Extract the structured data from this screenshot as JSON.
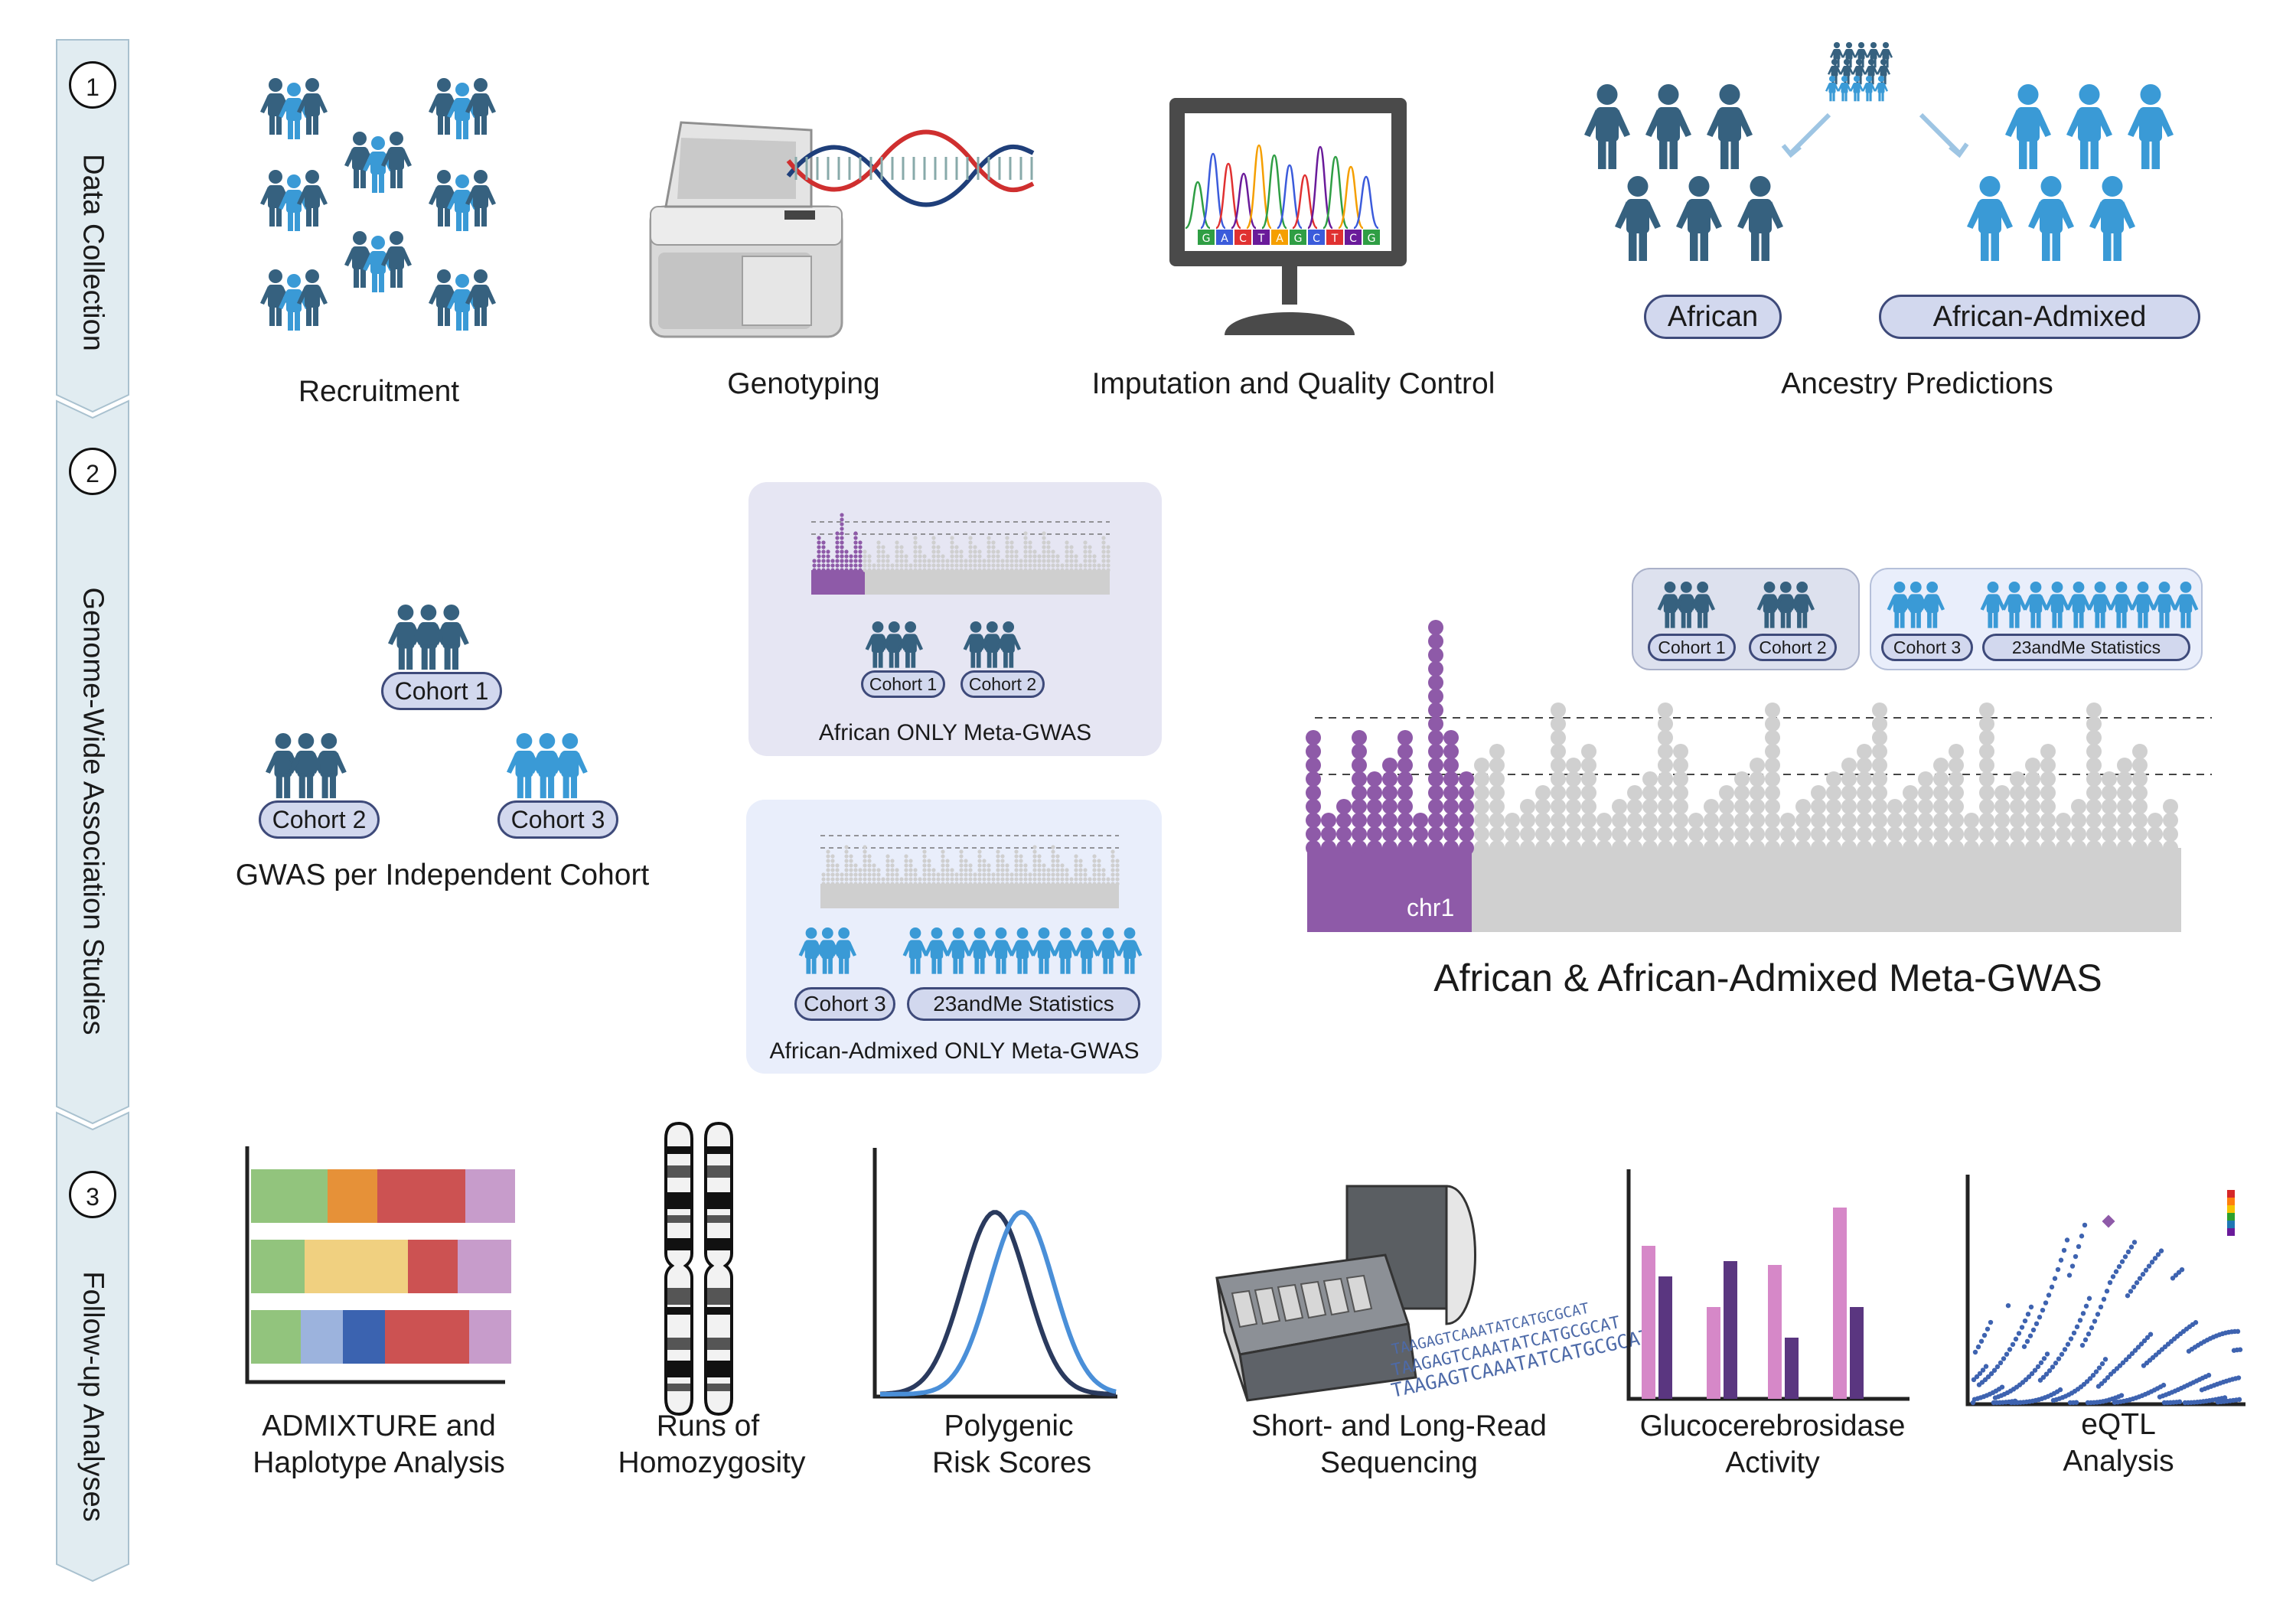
{
  "steps": [
    {
      "number": "1",
      "label": "Data Collection"
    },
    {
      "number": "2",
      "label": "Genome-Wide Association Studies"
    },
    {
      "number": "3",
      "label": "Follow-up Analyses"
    }
  ],
  "section1": {
    "recruitment": "Recruitment",
    "genotyping": "Genotyping",
    "imputation": "Imputation and Quality Control",
    "ancestry": "Ancestry Predictions",
    "ancestry_groups": [
      "African",
      "African-Admixed"
    ],
    "sequence_letters": "GACTAGCTCG"
  },
  "section2": {
    "cohorts": [
      "Cohort 1",
      "Cohort 2",
      "Cohort 3"
    ],
    "per_cohort_caption": "GWAS per Independent Cohort",
    "african_only_caption": "African ONLY Meta-GWAS",
    "admixed_only_caption": "African-Admixed ONLY Meta-GWAS",
    "stats_23andme": "23andMe Statistics",
    "chromosome_label": "chr1",
    "combined_caption": "African & African-Admixed Meta-GWAS"
  },
  "section3": {
    "items": [
      {
        "line1": "ADMIXTURE and",
        "line2": "Haplotype Analysis"
      },
      {
        "line1": "Runs of",
        "line2": "Homozygosity"
      },
      {
        "line1": "Polygenic",
        "line2": "Risk Scores"
      },
      {
        "line1": "Short- and Long-Read",
        "line2": "Sequencing"
      },
      {
        "line1": "Glucocerebrosidase",
        "line2": "Activity"
      },
      {
        "line1": "eQTL",
        "line2": "Analysis"
      }
    ],
    "sequence_text": "TAAGAGTCAAATATCATGCGCAT"
  },
  "colors": {
    "dark_people": "#36617f",
    "light_people": "#3a9ad6",
    "purple": "#8e5aa8",
    "gray_points": "#cfcfcf",
    "pill_fill": "#d2d8ee",
    "pill_border": "#3e4a7a",
    "panel_purple": "#e6e6f3",
    "panel_blue": "#e9eefb"
  }
}
